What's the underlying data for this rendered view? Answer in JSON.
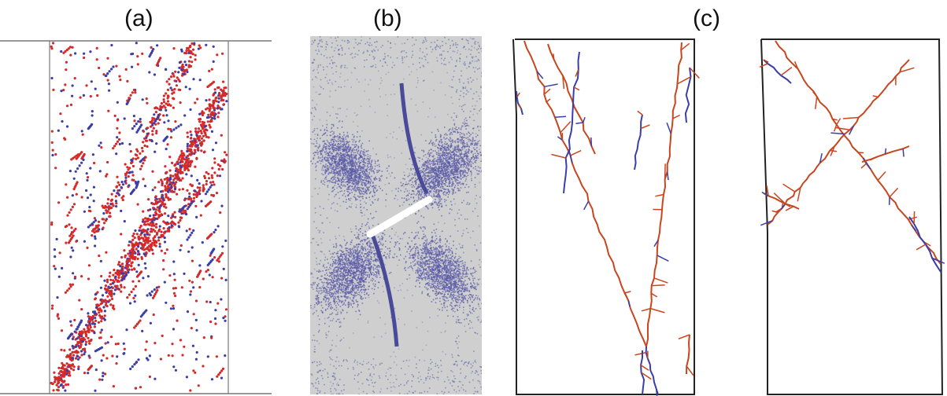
{
  "figure": {
    "panels": [
      {
        "label": "(a)",
        "name": "particle-crack-distribution"
      },
      {
        "label": "(b)",
        "name": "damage-field-with-inclusion"
      },
      {
        "label": "(c)",
        "name": "crack-network-pair"
      }
    ]
  },
  "colors": {
    "tensile_crack": "#d42a2a",
    "shear_crack": "#3a3ea8",
    "orange_crack": "#c8461e",
    "damage_blue": "#5a5aa8",
    "specimen_grey": "#cfcfcf",
    "frame": "#222222",
    "axis_line": "#777777"
  }
}
